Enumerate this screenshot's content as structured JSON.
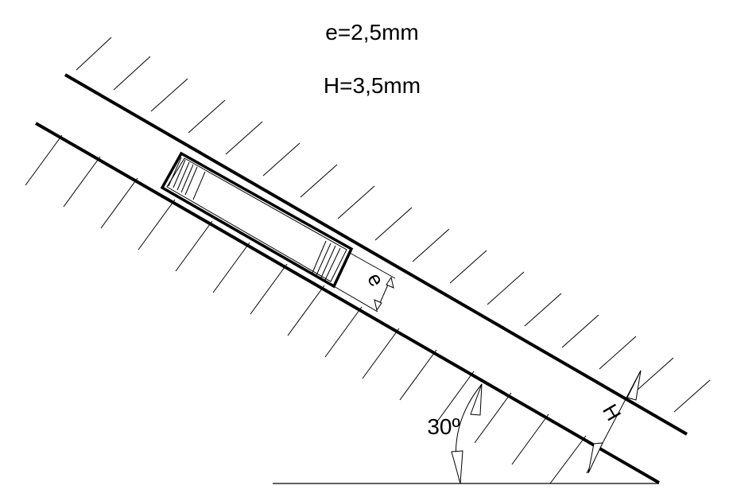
{
  "params": {
    "e_label": "e=2,5mm",
    "h_label": "H=3,5mm"
  },
  "dimensions": {
    "e": "e",
    "h": "H",
    "angle": "30º"
  },
  "colors": {
    "ink": "#000000",
    "background": "#ffffff"
  }
}
